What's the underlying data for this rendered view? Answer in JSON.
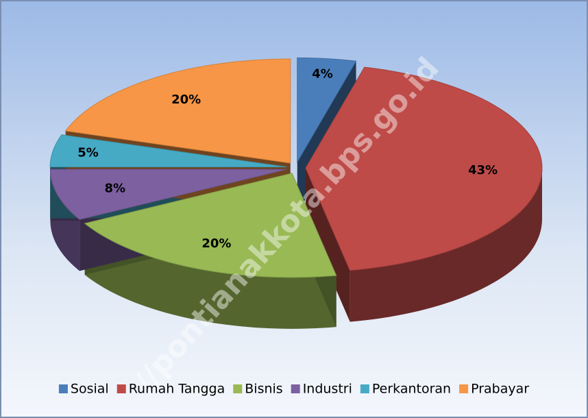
{
  "chart_data": {
    "type": "pie3d",
    "categories": [
      "Sosial",
      "Rumah Tangga",
      "Bisnis",
      "Industri",
      "Perkantoran",
      "Prabayar"
    ],
    "values": [
      4,
      43,
      20,
      8,
      5,
      20
    ],
    "value_labels": [
      "4%",
      "43%",
      "20%",
      "8%",
      "5%",
      "20%"
    ],
    "colors": [
      "#4a7ebb",
      "#be4b48",
      "#98b954",
      "#7d60a0",
      "#46aac5",
      "#f79646"
    ],
    "legend": "bottom",
    "watermark": "//pontianakkota.bps.go.id"
  }
}
